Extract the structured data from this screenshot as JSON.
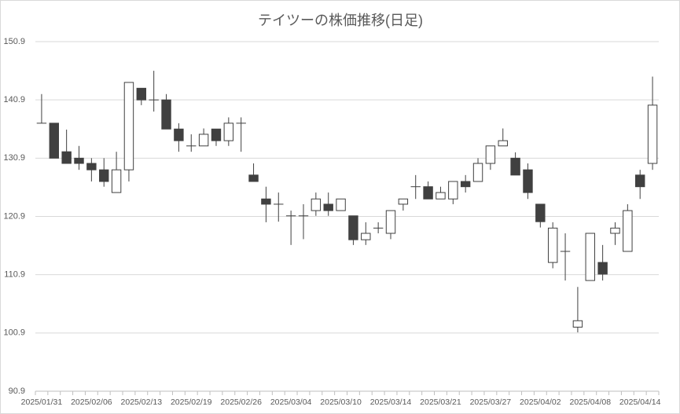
{
  "chart_data": {
    "type": "candlestick",
    "title": "テイツーの株価推移(日足)",
    "categories": [
      "2025/01/31",
      null,
      null,
      null,
      "2025/02/06",
      null,
      null,
      null,
      "2025/02/13",
      null,
      null,
      null,
      "2025/02/19",
      null,
      null,
      null,
      "2025/02/26",
      null,
      null,
      null,
      "2025/03/04",
      null,
      null,
      null,
      "2025/03/10",
      null,
      null,
      null,
      "2025/03/14",
      null,
      null,
      null,
      "2025/03/21",
      null,
      null,
      null,
      "2025/03/27",
      null,
      null,
      null,
      "2025/04/02",
      null,
      null,
      null,
      "2025/04/08",
      null,
      null,
      null,
      "2025/04/14",
      null
    ],
    "open": [
      136.9,
      136.9,
      132.0,
      130.9,
      130.0,
      128.9,
      125.0,
      128.9,
      142.9,
      140.9,
      140.9,
      135.9,
      133.0,
      133.0,
      135.9,
      133.9,
      136.9,
      128.0,
      123.9,
      123.0,
      121.0,
      121.0,
      121.9,
      123.0,
      121.9,
      121.0,
      116.9,
      118.9,
      118.0,
      123.0,
      126.0,
      126.0,
      123.9,
      123.9,
      126.9,
      126.9,
      130.0,
      133.0,
      130.9,
      128.9,
      123.0,
      113.0,
      114.9,
      101.9,
      109.9,
      113.0,
      118.0,
      114.9,
      128.0,
      130.0
    ],
    "high": [
      141.9,
      136.9,
      135.8,
      133.0,
      130.9,
      130.9,
      132.0,
      143.9,
      142.9,
      145.9,
      141.9,
      136.9,
      135.0,
      136.0,
      135.9,
      137.9,
      137.9,
      130.0,
      126.0,
      125.0,
      121.9,
      123.0,
      125.0,
      125.0,
      123.9,
      121.0,
      119.9,
      119.9,
      121.9,
      123.9,
      128.0,
      126.9,
      126.0,
      126.9,
      128.0,
      130.9,
      133.0,
      136.0,
      131.9,
      130.0,
      123.0,
      119.9,
      118.0,
      108.8,
      118.0,
      116.0,
      119.9,
      123.0,
      128.9,
      144.9
    ],
    "low": [
      136.9,
      130.9,
      130.0,
      128.9,
      126.9,
      126.0,
      125.0,
      126.9,
      140.0,
      138.9,
      135.9,
      132.0,
      132.0,
      133.0,
      133.0,
      133.0,
      132.0,
      126.9,
      119.9,
      120.0,
      116.0,
      117.0,
      121.0,
      121.0,
      121.9,
      116.0,
      116.0,
      118.0,
      117.0,
      121.9,
      123.9,
      123.9,
      123.9,
      123.0,
      125.0,
      126.9,
      128.9,
      133.0,
      128.0,
      123.9,
      119.0,
      112.0,
      109.9,
      101.0,
      109.9,
      109.9,
      116.0,
      114.9,
      123.9,
      128.9
    ],
    "close": [
      136.9,
      130.9,
      130.0,
      130.0,
      128.9,
      126.9,
      128.9,
      143.9,
      140.9,
      140.9,
      135.9,
      133.9,
      133.0,
      135.0,
      133.9,
      136.9,
      136.9,
      126.9,
      123.0,
      123.0,
      121.0,
      121.0,
      123.9,
      121.9,
      123.9,
      116.9,
      118.0,
      118.9,
      121.9,
      123.9,
      126.0,
      123.9,
      125.0,
      126.9,
      126.0,
      130.0,
      133.0,
      133.9,
      128.0,
      125.0,
      120.0,
      118.9,
      114.9,
      103.0,
      118.0,
      111.0,
      118.9,
      121.9,
      126.0,
      140.0
    ],
    "up_color": "#ffffff",
    "down_color": "#404040",
    "line_color": "#404040",
    "ylim": [
      90.9,
      150.9
    ],
    "yticks": [
      90.9,
      100.9,
      110.9,
      120.9,
      130.9,
      140.9,
      150.9
    ],
    "grid": true
  }
}
